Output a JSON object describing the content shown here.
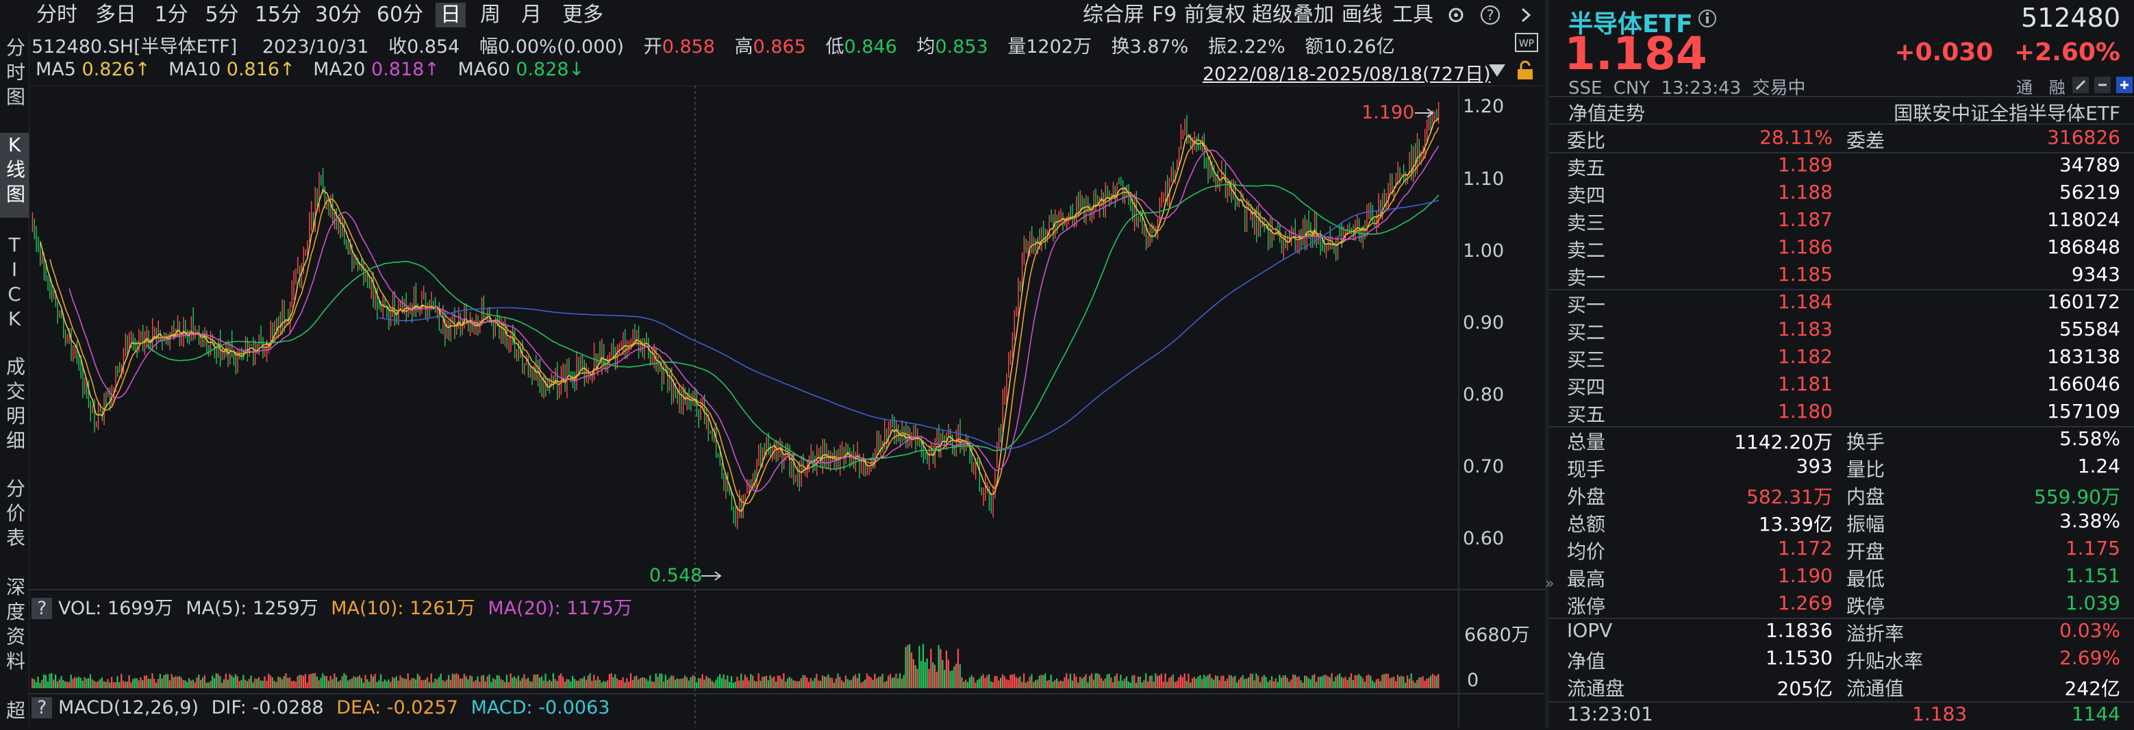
{
  "toolbar": {
    "tabs": [
      "分时",
      "多日",
      "1分",
      "5分",
      "15分",
      "30分",
      "60分",
      "日",
      "周",
      "月",
      "更多"
    ],
    "active_tab": "日",
    "right": [
      "综合屏",
      "F9",
      "前复权",
      "超级叠加",
      "画线",
      "工具"
    ],
    "gear_icon": "gear-icon",
    "help_icon": "help-icon",
    "expand_icon": "chevron-right-icon"
  },
  "leftnav": [
    "分时图",
    "K线图",
    "TICK",
    "成交明细",
    "分价表",
    "深度资料",
    "超"
  ],
  "info": {
    "code": "512480.SH[半导体ETF]",
    "date": "2023/10/31",
    "close_label": "收",
    "close": "0.854",
    "chg_label": "幅",
    "chg": "0.00%(0.000)",
    "open_label": "开",
    "open": "0.858",
    "high_label": "高",
    "high": "0.865",
    "low_label": "低",
    "low": "0.846",
    "avg_label": "均",
    "avg": "0.853",
    "vol_label": "量",
    "vol": "1202万",
    "turn_label": "换",
    "turn": "3.87%",
    "amp_label": "振",
    "amp": "2.22%",
    "amt_label": "额",
    "amt": "10.26亿"
  },
  "ma": {
    "ma5_label": "MA5",
    "ma5": "0.826↑",
    "ma10_label": "MA10",
    "ma10": "0.816↑",
    "ma20_label": "MA20",
    "ma20": "0.818↑",
    "ma60_label": "MA60",
    "ma60": "0.828↓",
    "range": "2022/08/18-2025/08/18(727日)"
  },
  "vol_bar": {
    "q": "?",
    "text": "VOL: 1699万",
    "ma5": "MA(5): 1259万",
    "ma10": "MA(10): 1261万",
    "ma20": "MA(20): 1175万"
  },
  "macd_bar": {
    "q": "?",
    "text": "MACD(12,26,9)",
    "dif": "DIF: -0.0288",
    "dea": "DEA: -0.0257",
    "macd": "MACD: -0.0063"
  },
  "colors": {
    "up": "#ff4c4c",
    "down": "#22c55e",
    "ma5": "#e8c54a",
    "ma10": "#f0a030",
    "ma20": "#d050d0",
    "ma60": "#22c55e",
    "long": "#4060d0"
  },
  "chart_data": {
    "type": "candlestick",
    "x_range": [
      "2022/08/18",
      "2025/08/18"
    ],
    "ylim": [
      0.55,
      1.2
    ],
    "y_ticks": [
      "1.20",
      "1.10",
      "1.00",
      "0.90",
      "0.80",
      "0.70",
      "0.60"
    ],
    "annotations": {
      "max": "1.190",
      "min": "0.548"
    },
    "trend_close": [
      1.02,
      0.88,
      0.75,
      0.86,
      0.87,
      0.88,
      0.84,
      0.85,
      0.9,
      1.08,
      0.98,
      0.9,
      0.92,
      0.88,
      0.9,
      0.86,
      0.8,
      0.82,
      0.84,
      0.86,
      0.8,
      0.76,
      0.62,
      0.72,
      0.68,
      0.71,
      0.69,
      0.74,
      0.71,
      0.73,
      0.64,
      0.99,
      1.03,
      1.05,
      1.08,
      1.0,
      1.15,
      1.1,
      1.04,
      1.0,
      1.02,
      1.0,
      1.04,
      1.1,
      1.18
    ],
    "vol_axis": [
      "6680万",
      "0"
    ]
  },
  "quote": {
    "name": "半导体ETF",
    "code": "512480",
    "price": "1.184",
    "change": "+0.030",
    "change_pct": "+2.60%",
    "market": "SSE",
    "currency": "CNY",
    "time": "13:23:43",
    "status": "交易中",
    "nav_trend": "净值走势",
    "index": "国联安中证全指半导体ETF",
    "icons": [
      "通",
      "融"
    ]
  },
  "orderbook": {
    "weibi_label": "委比",
    "weibi": "28.11%",
    "weicha_label": "委差",
    "weicha": "316826",
    "sells": [
      {
        "label": "卖五",
        "price": "1.189",
        "vol": "34789"
      },
      {
        "label": "卖四",
        "price": "1.188",
        "vol": "56219"
      },
      {
        "label": "卖三",
        "price": "1.187",
        "vol": "118024"
      },
      {
        "label": "卖二",
        "price": "1.186",
        "vol": "186848"
      },
      {
        "label": "卖一",
        "price": "1.185",
        "vol": "9343"
      }
    ],
    "buys": [
      {
        "label": "买一",
        "price": "1.184",
        "vol": "160172"
      },
      {
        "label": "买二",
        "price": "1.183",
        "vol": "55584"
      },
      {
        "label": "买三",
        "price": "1.182",
        "vol": "183138"
      },
      {
        "label": "买四",
        "price": "1.181",
        "vol": "166046"
      },
      {
        "label": "买五",
        "price": "1.180",
        "vol": "157109"
      }
    ]
  },
  "stats": [
    {
      "l1": "总量",
      "v1": "1142.20万",
      "l2": "换手",
      "v2": "5.58%",
      "c1": "white",
      "c2": "white"
    },
    {
      "l1": "现手",
      "v1": "393",
      "l2": "量比",
      "v2": "1.24",
      "c1": "white",
      "c2": "white"
    },
    {
      "l1": "外盘",
      "v1": "582.31万",
      "l2": "内盘",
      "v2": "559.90万",
      "c1": "red",
      "c2": "green"
    },
    {
      "l1": "总额",
      "v1": "13.39亿",
      "l2": "振幅",
      "v2": "3.38%",
      "c1": "white",
      "c2": "white"
    },
    {
      "l1": "均价",
      "v1": "1.172",
      "l2": "开盘",
      "v2": "1.175",
      "c1": "red",
      "c2": "red"
    },
    {
      "l1": "最高",
      "v1": "1.190",
      "l2": "最低",
      "v2": "1.151",
      "c1": "red",
      "c2": "green"
    },
    {
      "l1": "涨停",
      "v1": "1.269",
      "l2": "跌停",
      "v2": "1.039",
      "c1": "red",
      "c2": "green"
    }
  ],
  "stats2": [
    {
      "l1": "IOPV",
      "v1": "1.1836",
      "l2": "溢折率",
      "v2": "0.03%",
      "c1": "white",
      "c2": "red"
    },
    {
      "l1": "净值",
      "v1": "1.1530",
      "l2": "升贴水率",
      "v2": "2.69%",
      "c1": "white",
      "c2": "red"
    },
    {
      "l1": "流通盘",
      "v1": "205亿",
      "l2": "流通值",
      "v2": "242亿",
      "c1": "white",
      "c2": "white"
    }
  ],
  "tick": {
    "time": "13:23:01",
    "price": "1.183",
    "vol": "1144"
  }
}
